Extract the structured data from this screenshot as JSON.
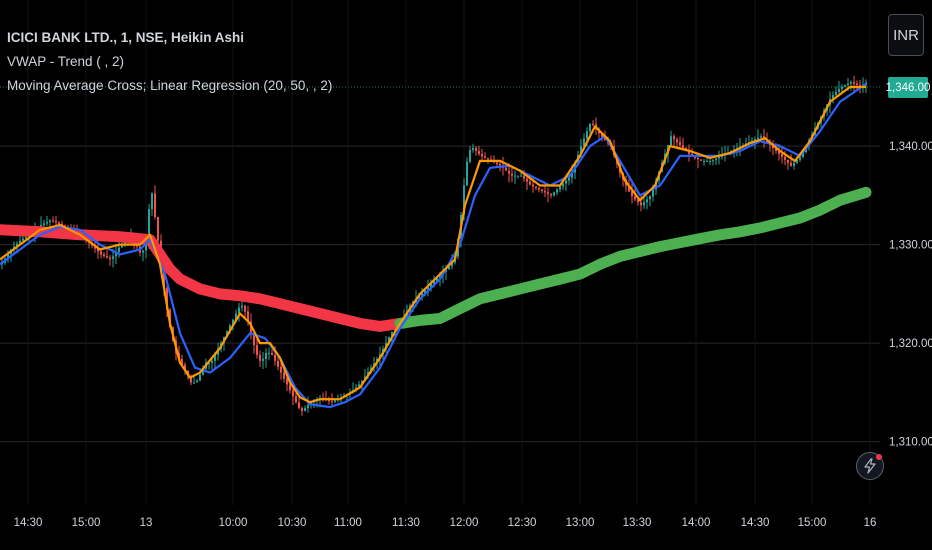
{
  "legend": {
    "title": "ICICI BANK LTD., 1, NSE, Heikin Ashi",
    "vwap": "VWAP - Trend ( , 2)",
    "ma": "Moving Average Cross; Linear Regression (20, 50, , 2)"
  },
  "currency_button": "INR",
  "last_price_label": "1,346.00",
  "colors": {
    "up": "#26a69a",
    "down": "#ef5350",
    "fast_ma": "#ff9800",
    "slow_ma": "#2962ff",
    "vwap_down": "#f23645",
    "vwap_up": "#4caf50",
    "price_badge": "#22ab94",
    "text": "#d1d4dc"
  },
  "icons": {
    "flash": "lightning-icon"
  },
  "chart_data": {
    "type": "line",
    "candle_style": "Heikin Ashi",
    "interval": "1",
    "ylim": [
      1303,
      1350
    ],
    "y_ticks": [
      1310,
      1320,
      1330,
      1340
    ],
    "y_tick_labels": [
      "1,310.00",
      "1,320.00",
      "1,330.00",
      "1,340.00"
    ],
    "grid": true,
    "x_tick_labels": [
      "14:30",
      "15:00",
      "13",
      "10:00",
      "10:30",
      "11:00",
      "11:30",
      "12:00",
      "12:30",
      "13:00",
      "13:30",
      "14:00",
      "14:30",
      "15:00",
      "16"
    ],
    "last_price": 1346.0,
    "price": [
      [
        0,
        1328
      ],
      [
        10,
        1329.5
      ],
      [
        20,
        1330.5
      ],
      [
        30,
        1331
      ],
      [
        40,
        1332
      ],
      [
        50,
        1332.5
      ],
      [
        60,
        1332
      ],
      [
        70,
        1331.5
      ],
      [
        80,
        1331
      ],
      [
        90,
        1330
      ],
      [
        100,
        1329
      ],
      [
        110,
        1328.5
      ],
      [
        120,
        1330
      ],
      [
        130,
        1331
      ],
      [
        140,
        1329
      ],
      [
        145,
        1330
      ],
      [
        150,
        1336
      ],
      [
        155,
        1332
      ],
      [
        160,
        1328
      ],
      [
        165,
        1324
      ],
      [
        170,
        1321
      ],
      [
        175,
        1319
      ],
      [
        180,
        1318
      ],
      [
        185,
        1317
      ],
      [
        190,
        1316
      ],
      [
        195,
        1316
      ],
      [
        200,
        1317
      ],
      [
        205,
        1318
      ],
      [
        210,
        1318
      ],
      [
        215,
        1319
      ],
      [
        220,
        1320
      ],
      [
        225,
        1321
      ],
      [
        230,
        1322
      ],
      [
        235,
        1323
      ],
      [
        240,
        1324
      ],
      [
        245,
        1323
      ],
      [
        250,
        1321
      ],
      [
        255,
        1319
      ],
      [
        260,
        1318
      ],
      [
        265,
        1319
      ],
      [
        270,
        1319
      ],
      [
        275,
        1318
      ],
      [
        280,
        1317
      ],
      [
        285,
        1316
      ],
      [
        290,
        1315
      ],
      [
        295,
        1314
      ],
      [
        300,
        1313
      ],
      [
        305,
        1313.5
      ],
      [
        310,
        1314
      ],
      [
        320,
        1314.5
      ],
      [
        330,
        1314
      ],
      [
        340,
        1314.5
      ],
      [
        350,
        1315
      ],
      [
        360,
        1316
      ],
      [
        370,
        1317.5
      ],
      [
        380,
        1319
      ],
      [
        390,
        1321
      ],
      [
        400,
        1322
      ],
      [
        410,
        1324
      ],
      [
        420,
        1325
      ],
      [
        430,
        1326
      ],
      [
        440,
        1327
      ],
      [
        450,
        1328
      ],
      [
        455,
        1329
      ],
      [
        460,
        1333
      ],
      [
        465,
        1338
      ],
      [
        470,
        1340
      ],
      [
        480,
        1339
      ],
      [
        490,
        1338.5
      ],
      [
        500,
        1338
      ],
      [
        510,
        1337
      ],
      [
        520,
        1337
      ],
      [
        530,
        1336
      ],
      [
        540,
        1335.5
      ],
      [
        550,
        1335
      ],
      [
        560,
        1336
      ],
      [
        570,
        1337
      ],
      [
        580,
        1340
      ],
      [
        590,
        1342.5
      ],
      [
        600,
        1341
      ],
      [
        610,
        1340
      ],
      [
        620,
        1337
      ],
      [
        630,
        1335
      ],
      [
        640,
        1334
      ],
      [
        650,
        1335
      ],
      [
        660,
        1338
      ],
      [
        670,
        1341
      ],
      [
        680,
        1340
      ],
      [
        690,
        1339
      ],
      [
        700,
        1338.5
      ],
      [
        710,
        1338.5
      ],
      [
        720,
        1339
      ],
      [
        730,
        1339.5
      ],
      [
        740,
        1340
      ],
      [
        750,
        1340.5
      ],
      [
        760,
        1341
      ],
      [
        770,
        1340
      ],
      [
        780,
        1339
      ],
      [
        790,
        1338
      ],
      [
        800,
        1339
      ],
      [
        810,
        1341
      ],
      [
        820,
        1343
      ],
      [
        830,
        1345
      ],
      [
        840,
        1346
      ],
      [
        850,
        1346.5
      ],
      [
        860,
        1346
      ],
      [
        866,
        1346.5
      ]
    ],
    "series": [
      {
        "name": "20",
        "values": [
          [
            0,
            1328.5
          ],
          [
            20,
            1330
          ],
          [
            40,
            1331.5
          ],
          [
            60,
            1332
          ],
          [
            80,
            1331
          ],
          [
            100,
            1329.5
          ],
          [
            120,
            1330
          ],
          [
            140,
            1330
          ],
          [
            150,
            1331
          ],
          [
            160,
            1328
          ],
          [
            170,
            1322
          ],
          [
            180,
            1318
          ],
          [
            190,
            1316.5
          ],
          [
            200,
            1317
          ],
          [
            220,
            1319.5
          ],
          [
            240,
            1323
          ],
          [
            250,
            1322
          ],
          [
            260,
            1320
          ],
          [
            270,
            1320
          ],
          [
            280,
            1318.5
          ],
          [
            290,
            1316
          ],
          [
            300,
            1314.5
          ],
          [
            310,
            1314
          ],
          [
            320,
            1314.3
          ],
          [
            340,
            1314.3
          ],
          [
            360,
            1315.5
          ],
          [
            380,
            1318.5
          ],
          [
            400,
            1322
          ],
          [
            420,
            1325
          ],
          [
            440,
            1327
          ],
          [
            455,
            1328.5
          ],
          [
            465,
            1334
          ],
          [
            480,
            1338.5
          ],
          [
            500,
            1338.5
          ],
          [
            520,
            1337.5
          ],
          [
            540,
            1336
          ],
          [
            560,
            1336
          ],
          [
            580,
            1339
          ],
          [
            595,
            1342
          ],
          [
            610,
            1340.5
          ],
          [
            625,
            1336.5
          ],
          [
            640,
            1334.5
          ],
          [
            655,
            1336
          ],
          [
            670,
            1340
          ],
          [
            690,
            1339.5
          ],
          [
            710,
            1338.8
          ],
          [
            730,
            1339.3
          ],
          [
            750,
            1340.3
          ],
          [
            765,
            1340.8
          ],
          [
            780,
            1339.5
          ],
          [
            795,
            1338.5
          ],
          [
            810,
            1340.5
          ],
          [
            830,
            1344.5
          ],
          [
            850,
            1346
          ],
          [
            866,
            1346
          ]
        ]
      },
      {
        "name": "50",
        "values": [
          [
            0,
            1328
          ],
          [
            20,
            1329.5
          ],
          [
            40,
            1331
          ],
          [
            60,
            1331.8
          ],
          [
            80,
            1331.5
          ],
          [
            100,
            1330
          ],
          [
            120,
            1329
          ],
          [
            140,
            1329.5
          ],
          [
            150,
            1330.5
          ],
          [
            165,
            1327
          ],
          [
            180,
            1321
          ],
          [
            195,
            1317.5
          ],
          [
            210,
            1317
          ],
          [
            230,
            1318.5
          ],
          [
            250,
            1321
          ],
          [
            265,
            1320.5
          ],
          [
            280,
            1318.5
          ],
          [
            295,
            1315.5
          ],
          [
            310,
            1313.8
          ],
          [
            330,
            1313.5
          ],
          [
            345,
            1314
          ],
          [
            360,
            1314.8
          ],
          [
            380,
            1317.5
          ],
          [
            400,
            1321.5
          ],
          [
            420,
            1324.5
          ],
          [
            440,
            1326.5
          ],
          [
            460,
            1330
          ],
          [
            475,
            1335
          ],
          [
            490,
            1337.8
          ],
          [
            510,
            1338
          ],
          [
            530,
            1337
          ],
          [
            550,
            1336
          ],
          [
            570,
            1337
          ],
          [
            590,
            1340
          ],
          [
            605,
            1341
          ],
          [
            620,
            1338.5
          ],
          [
            640,
            1335
          ],
          [
            660,
            1336
          ],
          [
            680,
            1339
          ],
          [
            700,
            1339
          ],
          [
            720,
            1339
          ],
          [
            740,
            1339.5
          ],
          [
            760,
            1340.5
          ],
          [
            780,
            1340
          ],
          [
            800,
            1339
          ],
          [
            820,
            1341.5
          ],
          [
            840,
            1344.5
          ],
          [
            866,
            1346.3
          ]
        ]
      },
      {
        "name": "VWAP",
        "values": [
          [
            0,
            1331.5
          ],
          [
            40,
            1331.3
          ],
          [
            80,
            1331
          ],
          [
            120,
            1330.8
          ],
          [
            150,
            1330.5
          ],
          [
            160,
            1329
          ],
          [
            170,
            1327.5
          ],
          [
            180,
            1326.5
          ],
          [
            200,
            1325.5
          ],
          [
            220,
            1325
          ],
          [
            240,
            1324.8
          ],
          [
            260,
            1324.5
          ],
          [
            280,
            1324
          ],
          [
            300,
            1323.5
          ],
          [
            320,
            1323
          ],
          [
            340,
            1322.5
          ],
          [
            360,
            1322
          ],
          [
            380,
            1321.7
          ],
          [
            400,
            1322
          ],
          [
            420,
            1322.3
          ],
          [
            440,
            1322.5
          ],
          [
            460,
            1323.5
          ],
          [
            480,
            1324.5
          ],
          [
            500,
            1325
          ],
          [
            520,
            1325.5
          ],
          [
            540,
            1326
          ],
          [
            560,
            1326.5
          ],
          [
            580,
            1327
          ],
          [
            600,
            1328
          ],
          [
            620,
            1328.8
          ],
          [
            640,
            1329.3
          ],
          [
            660,
            1329.8
          ],
          [
            680,
            1330.2
          ],
          [
            700,
            1330.6
          ],
          [
            720,
            1331
          ],
          [
            740,
            1331.3
          ],
          [
            760,
            1331.7
          ],
          [
            780,
            1332.2
          ],
          [
            800,
            1332.7
          ],
          [
            820,
            1333.5
          ],
          [
            840,
            1334.5
          ],
          [
            866,
            1335.3
          ]
        ],
        "color_split_x": 400
      }
    ]
  }
}
